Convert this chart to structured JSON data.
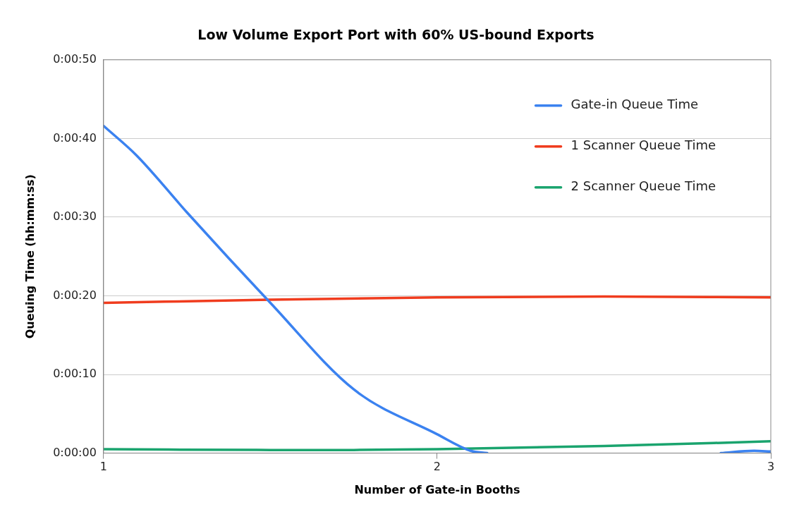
{
  "chart_data": {
    "type": "line",
    "title": "Low Volume Export Port with 60% US-bound Exports",
    "xlabel": "Number of Gate-in Booths",
    "ylabel": "Queuing Time (hh:mm:ss)",
    "xlim": [
      1,
      3
    ],
    "xticks": [
      1,
      2,
      3
    ],
    "ylim": [
      0,
      50
    ],
    "yticks": [
      {
        "value": 0,
        "label": "0:00:00"
      },
      {
        "value": 10,
        "label": "0:00:10"
      },
      {
        "value": 20,
        "label": "0:00:20"
      },
      {
        "value": 30,
        "label": "0:00:30"
      },
      {
        "value": 40,
        "label": "0:00:40"
      },
      {
        "value": 50,
        "label": "0:00:50"
      }
    ],
    "grid": "y",
    "legend": "top right",
    "marker": "none",
    "line_style": "solid",
    "series": [
      {
        "name": "Gate-in Queue Time",
        "color": "#3b82f0",
        "x": [
          1,
          1.1,
          1.25,
          1.5,
          1.75,
          2,
          2.1,
          2.15,
          2.5,
          2.85,
          2.95,
          3
        ],
        "values": [
          41.6,
          37.8,
          30.6,
          19.1,
          8.1,
          2.4,
          0.3,
          0,
          null,
          0,
          0.3,
          0.2
        ]
      },
      {
        "name": "1 Scanner Queue Time",
        "color": "#f03c1e",
        "x": [
          1,
          1.5,
          2,
          2.5,
          3
        ],
        "values": [
          19.1,
          19.5,
          19.8,
          19.9,
          19.8
        ]
      },
      {
        "name": "2 Scanner Queue Time",
        "color": "#1aa46e",
        "x": [
          1,
          1.5,
          1.75,
          2,
          2.5,
          3
        ],
        "values": [
          0.5,
          0.4,
          0.4,
          0.5,
          0.9,
          1.5
        ]
      }
    ]
  }
}
